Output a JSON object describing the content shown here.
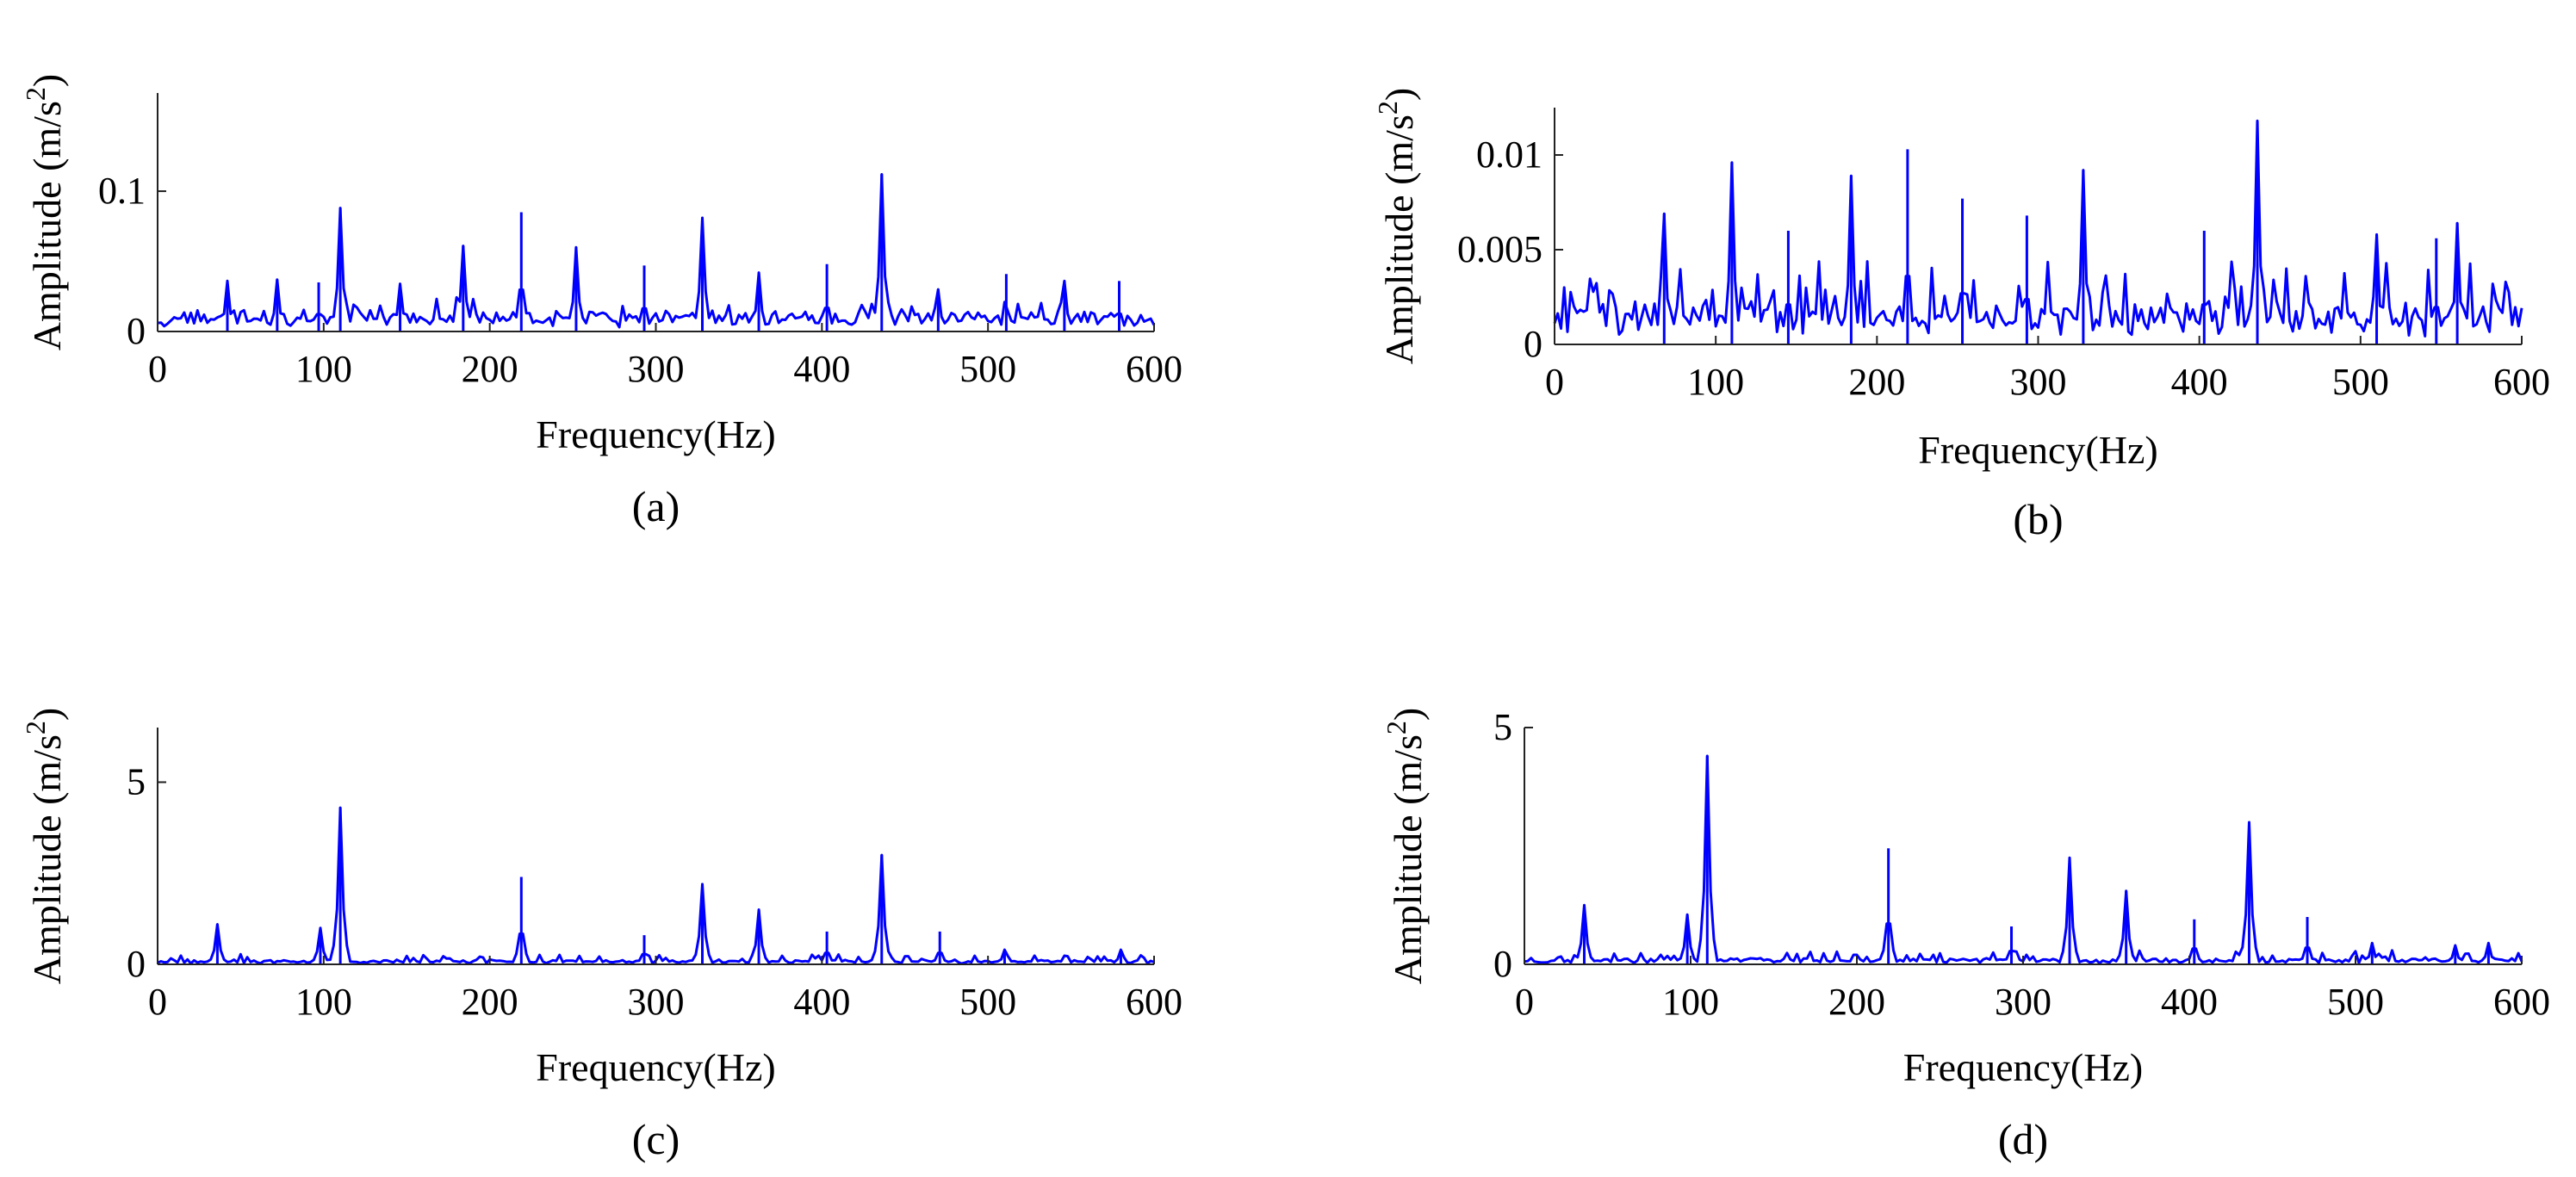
{
  "chart_data": [
    {
      "panel": "(a)",
      "type": "line",
      "xlabel": "Frequency(Hz)",
      "ylabel": "Amplitude (m/s",
      "ylabel_sup": "2",
      "ylabel_close": ")",
      "xlim": [
        0,
        600
      ],
      "ylim": [
        0,
        0.17
      ],
      "xticks": [
        0,
        100,
        200,
        300,
        400,
        500,
        600
      ],
      "xtick_labels": [
        "0",
        "100",
        "200",
        "300",
        "400",
        "500",
        "600"
      ],
      "yticks": [
        0,
        0.1
      ],
      "ytick_labels": [
        "0",
        "0.1"
      ],
      "line_color": "#0000ff",
      "noise": {
        "base": 0.009,
        "jitter": 0.014,
        "step": 2,
        "seed": 11
      },
      "peaks": [
        {
          "x": 110,
          "y": 0.088
        },
        {
          "x": 184,
          "y": 0.061
        },
        {
          "x": 219,
          "y": 0.085
        },
        {
          "x": 252,
          "y": 0.06
        },
        {
          "x": 293,
          "y": 0.047
        },
        {
          "x": 328,
          "y": 0.081
        },
        {
          "x": 362,
          "y": 0.042
        },
        {
          "x": 403,
          "y": 0.048
        },
        {
          "x": 436,
          "y": 0.112
        },
        {
          "x": 511,
          "y": 0.041
        },
        {
          "x": 546,
          "y": 0.036
        },
        {
          "x": 579,
          "y": 0.036
        },
        {
          "x": 42,
          "y": 0.036
        },
        {
          "x": 72,
          "y": 0.037
        },
        {
          "x": 97,
          "y": 0.035
        },
        {
          "x": 146,
          "y": 0.034
        },
        {
          "x": 470,
          "y": 0.03
        }
      ]
    },
    {
      "panel": "(b)",
      "type": "line",
      "xlabel": "Frequency(Hz)",
      "ylabel": "Amplitude (m/s",
      "ylabel_sup": "2",
      "ylabel_close": ")",
      "xlim": [
        0,
        600
      ],
      "ylim": [
        0,
        0.0125
      ],
      "xticks": [
        0,
        100,
        200,
        300,
        400,
        500,
        600
      ],
      "xtick_labels": [
        "0",
        "100",
        "200",
        "300",
        "400",
        "500",
        "600"
      ],
      "yticks": [
        0,
        0.005,
        0.01
      ],
      "ytick_labels": [
        "0",
        "0.005",
        "0.01"
      ],
      "line_color": "#0000ff",
      "noise": {
        "base": 0.0012,
        "jitter": 0.0032,
        "step": 2,
        "seed": 23
      },
      "peaks": [
        {
          "x": 68,
          "y": 0.0069
        },
        {
          "x": 110,
          "y": 0.0096
        },
        {
          "x": 145,
          "y": 0.006
        },
        {
          "x": 184,
          "y": 0.0089
        },
        {
          "x": 219,
          "y": 0.0103
        },
        {
          "x": 253,
          "y": 0.0077
        },
        {
          "x": 293,
          "y": 0.0068
        },
        {
          "x": 328,
          "y": 0.0092
        },
        {
          "x": 403,
          "y": 0.006
        },
        {
          "x": 436,
          "y": 0.0118
        },
        {
          "x": 510,
          "y": 0.0058
        },
        {
          "x": 560,
          "y": 0.0064
        },
        {
          "x": 547,
          "y": 0.0056
        }
      ]
    },
    {
      "panel": "(c)",
      "type": "line",
      "xlabel": "Frequency(Hz)",
      "ylabel": "Amplitude (m/s",
      "ylabel_sup": "2",
      "ylabel_close": ")",
      "xlim": [
        0,
        600
      ],
      "ylim": [
        0,
        6.5
      ],
      "xticks": [
        0,
        100,
        200,
        300,
        400,
        500,
        600
      ],
      "xtick_labels": [
        "0",
        "100",
        "200",
        "300",
        "400",
        "500",
        "600"
      ],
      "yticks": [
        0,
        5
      ],
      "ytick_labels": [
        "0",
        "5"
      ],
      "line_color": "#0000ff",
      "noise": {
        "base": 0.06,
        "jitter": 0.22,
        "step": 2,
        "seed": 37
      },
      "peaks": [
        {
          "x": 36,
          "y": 1.1
        },
        {
          "x": 98,
          "y": 1.0
        },
        {
          "x": 110,
          "y": 4.3
        },
        {
          "x": 219,
          "y": 2.4
        },
        {
          "x": 293,
          "y": 0.8
        },
        {
          "x": 328,
          "y": 2.2
        },
        {
          "x": 362,
          "y": 1.5
        },
        {
          "x": 403,
          "y": 0.9
        },
        {
          "x": 436,
          "y": 3.0
        },
        {
          "x": 471,
          "y": 0.9
        },
        {
          "x": 510,
          "y": 0.4
        },
        {
          "x": 580,
          "y": 0.4
        }
      ]
    },
    {
      "panel": "(d)",
      "type": "line",
      "xlabel": "Frequency(Hz)",
      "ylabel": "Amplitude (m/s",
      "ylabel_sup": "2",
      "ylabel_close": ")",
      "xlim": [
        0,
        600
      ],
      "ylim": [
        0,
        5
      ],
      "xticks": [
        0,
        100,
        200,
        300,
        400,
        500,
        600
      ],
      "xtick_labels": [
        "0",
        "100",
        "200",
        "300",
        "400",
        "500",
        "600"
      ],
      "yticks": [
        0,
        5
      ],
      "ytick_labels": [
        "0",
        "5"
      ],
      "line_color": "#0000ff",
      "noise": {
        "base": 0.06,
        "jitter": 0.22,
        "step": 2,
        "seed": 53
      },
      "peaks": [
        {
          "x": 36,
          "y": 1.25
        },
        {
          "x": 98,
          "y": 1.05
        },
        {
          "x": 110,
          "y": 4.4
        },
        {
          "x": 219,
          "y": 2.45
        },
        {
          "x": 293,
          "y": 0.8
        },
        {
          "x": 328,
          "y": 2.25
        },
        {
          "x": 362,
          "y": 1.55
        },
        {
          "x": 403,
          "y": 0.95
        },
        {
          "x": 436,
          "y": 3.0
        },
        {
          "x": 471,
          "y": 1.0
        },
        {
          "x": 510,
          "y": 0.45
        },
        {
          "x": 560,
          "y": 0.4
        },
        {
          "x": 580,
          "y": 0.45
        }
      ]
    }
  ]
}
